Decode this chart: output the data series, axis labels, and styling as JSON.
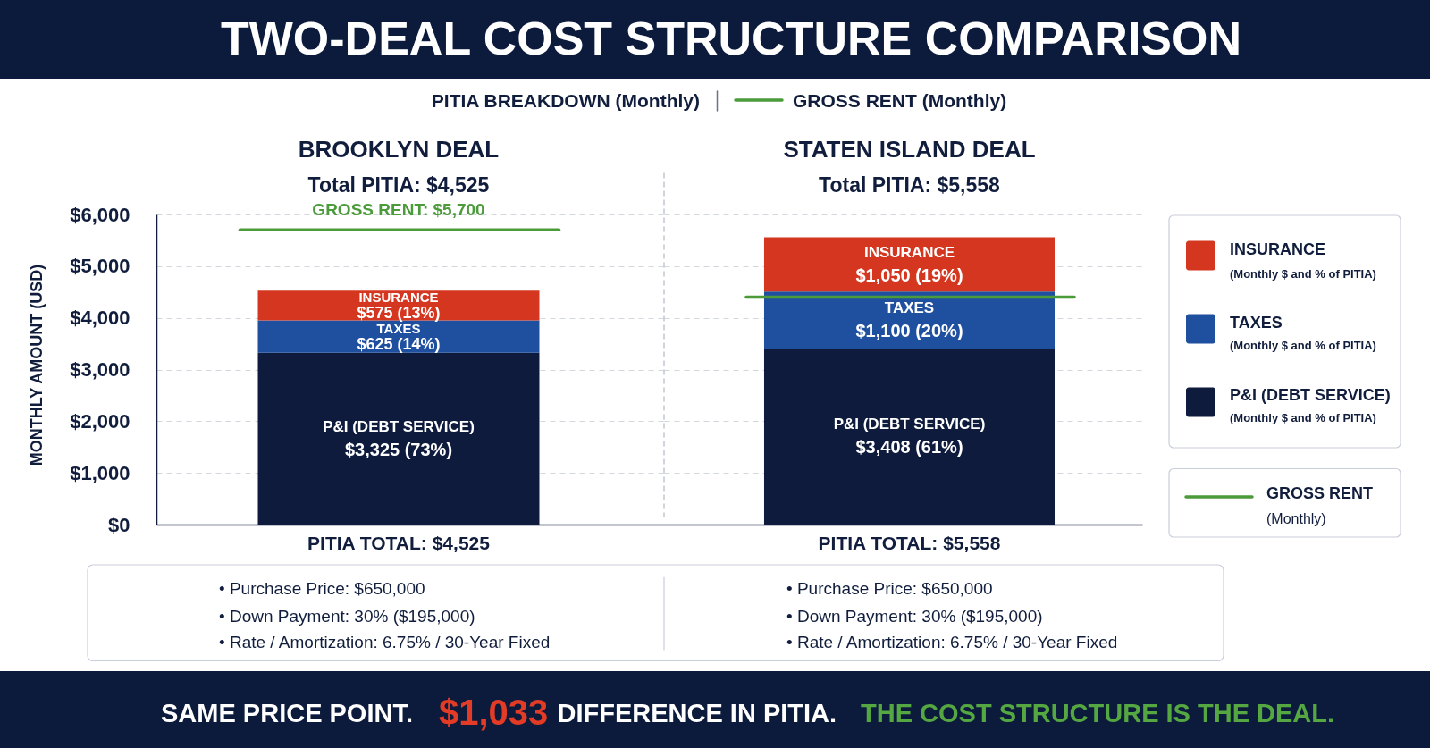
{
  "chart_data": [
    {
      "type": "bar",
      "stacked": true,
      "title": "BROOKLYN DEAL",
      "subtitle": "Total PITIA: $4,525",
      "categories": [
        "PITIA TOTAL: $4,525"
      ],
      "ylabel": "MONTHLY AMOUNT (USD)",
      "ylim": [
        0,
        6000
      ],
      "yticks": [
        {
          "value": 0,
          "label": "$0"
        },
        {
          "value": 1000,
          "label": "$1,000"
        },
        {
          "value": 2000,
          "label": "$2,000"
        },
        {
          "value": 3000,
          "label": "$3,000"
        },
        {
          "value": 4000,
          "label": "$4,000"
        },
        {
          "value": 5000,
          "label": "$5,000"
        },
        {
          "value": 6000,
          "label": "$6,000"
        }
      ],
      "grid": "y",
      "series": [
        {
          "name": "P&I (DEBT SERVICE)",
          "color": "#0e1b3d",
          "values": [
            3325
          ],
          "value_labels": [
            "$3,325 (73%)"
          ]
        },
        {
          "name": "TAXES",
          "color": "#1f4f9f",
          "values": [
            625
          ],
          "value_labels": [
            "$625 (14%)"
          ]
        },
        {
          "name": "INSURANCE",
          "color": "#d4361f",
          "values": [
            575
          ],
          "value_labels": [
            "$575 (13%)"
          ]
        }
      ],
      "ref_lines": [
        {
          "axis": "y",
          "value": 5700,
          "label": "GROSS RENT: $5,700",
          "color": "#4b9b3b"
        }
      ],
      "annotations": [
        "TWO-DEAL COST STRUCTURE COMPARISON",
        "PITIA BREAKDOWN (Monthly)",
        "GROSS RENT (Monthly)",
        "• Purchase Price: $650,000",
        "• Down Payment: 30% ($195,000)",
        "• Rate / Amortization: 6.75% / 30-Year Fixed",
        "SAME PRICE POINT.",
        "$1,033",
        "DIFFERENCE IN PITIA.",
        "THE COST STRUCTURE IS THE DEAL."
      ]
    },
    {
      "type": "bar",
      "stacked": true,
      "title": "STATEN ISLAND DEAL",
      "subtitle": "Total PITIA: $5,558",
      "categories": [
        "PITIA TOTAL: $5,558"
      ],
      "ylim": [
        0,
        6000
      ],
      "yticks": [
        0,
        1000,
        2000,
        3000,
        4000,
        5000,
        6000
      ],
      "tick_labels": "x",
      "grid": "y",
      "legend": "right",
      "series": [
        {
          "name": "P&I (DEBT SERVICE)",
          "color": "#0e1b3d",
          "values": [
            3408
          ],
          "value_labels": [
            "$3,408 (61%)"
          ]
        },
        {
          "name": "TAXES",
          "color": "#1f4f9f",
          "values": [
            1100
          ],
          "value_labels": [
            "$1,100 (20%)"
          ]
        },
        {
          "name": "INSURANCE",
          "color": "#d4361f",
          "values": [
            1050
          ],
          "value_labels": [
            "$1,050 (19%)"
          ]
        }
      ],
      "ref_lines": [
        {
          "axis": "y",
          "value": 4400,
          "color": "#4b9b3b"
        }
      ],
      "annotations": [
        "(Monthly $ and % of PITIA)",
        "(Monthly $ and % of PITIA)",
        "(Monthly $ and % of PITIA)",
        "GROSS RENT",
        "(Monthly)",
        "• Purchase Price: $650,000",
        "• Down Payment: 30% ($195,000)",
        "• Rate / Amortization: 6.75% / 30-Year Fixed"
      ]
    }
  ]
}
